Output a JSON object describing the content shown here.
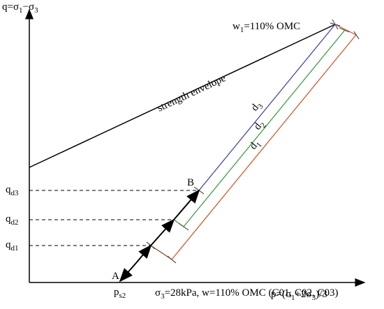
{
  "axes": {
    "y_label": [
      {
        "t": "q=σ"
      },
      {
        "t": "1",
        "sub": true
      },
      {
        "t": "−σ"
      },
      {
        "t": "3",
        "sub": true
      }
    ],
    "x_label": [
      {
        "t": "p=(σ"
      },
      {
        "t": "1",
        "sub": true
      },
      {
        "t": "+2σ"
      },
      {
        "t": "3",
        "sub": true
      },
      {
        "t": ")/3"
      }
    ]
  },
  "labels": {
    "top_point": [
      {
        "t": "w"
      },
      {
        "t": "1",
        "sub": true
      },
      {
        "t": "=110% OMC"
      }
    ],
    "envelope": [
      {
        "t": "strength envelope"
      }
    ],
    "d3": [
      {
        "t": "d"
      },
      {
        "t": "3",
        "sub": true
      }
    ],
    "d2": [
      {
        "t": "d"
      },
      {
        "t": "2",
        "sub": true
      }
    ],
    "d1": [
      {
        "t": "d"
      },
      {
        "t": "1",
        "sub": true
      }
    ],
    "B": [
      {
        "t": "B"
      }
    ],
    "A": [
      {
        "t": "A"
      }
    ],
    "ps2": [
      {
        "t": "p"
      },
      {
        "t": "s2",
        "sub": true
      }
    ],
    "qd3": [
      {
        "t": "q"
      },
      {
        "t": "d3",
        "sub": true
      }
    ],
    "qd2": [
      {
        "t": "q"
      },
      {
        "t": "d2",
        "sub": true
      }
    ],
    "qd1": [
      {
        "t": "q"
      },
      {
        "t": "d1",
        "sub": true
      }
    ],
    "condition": [
      {
        "t": "σ"
      },
      {
        "t": "3",
        "sub": true
      },
      {
        "t": "=28kPa, w=110% OMC (C01, C02, C03)"
      }
    ]
  }
}
